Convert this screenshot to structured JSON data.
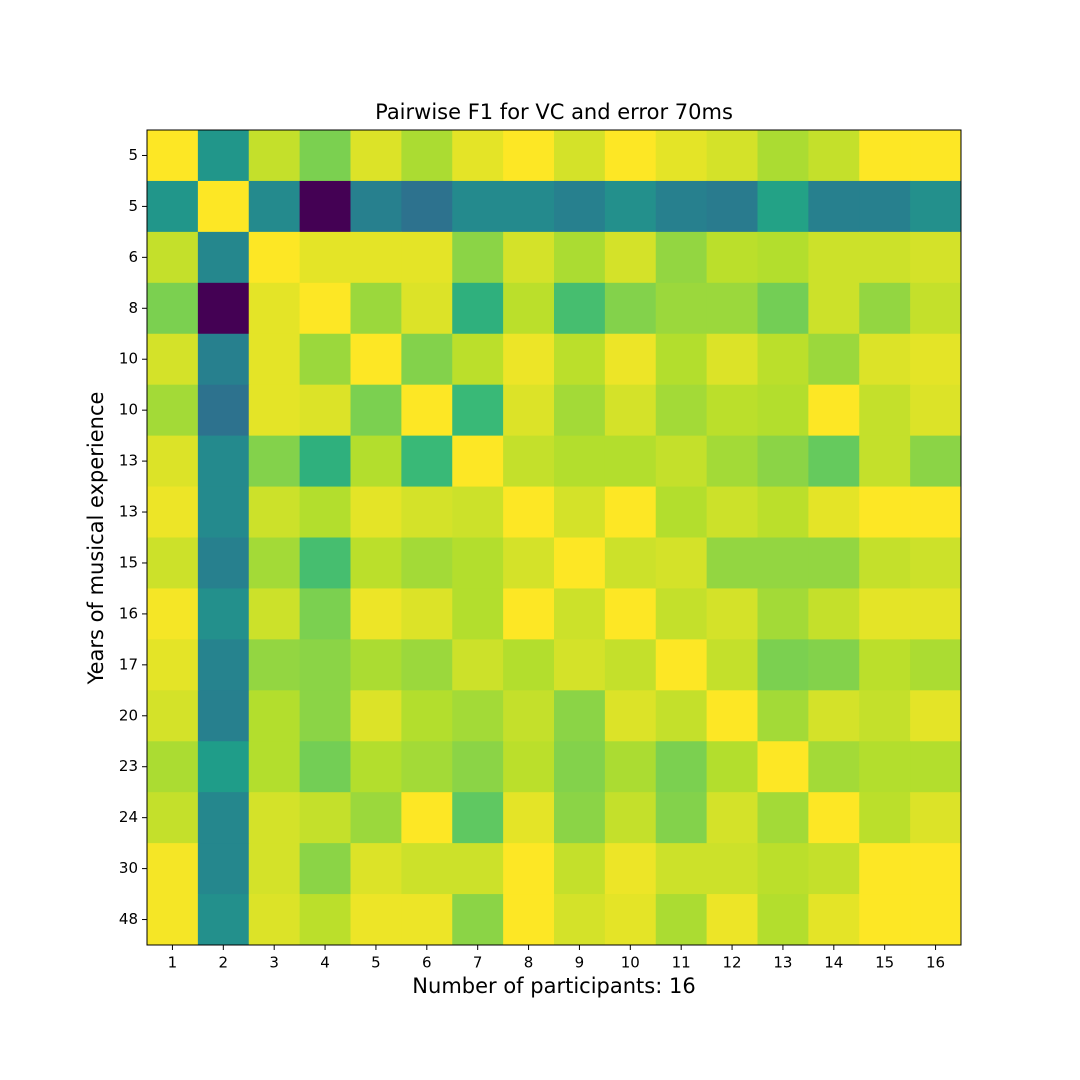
{
  "chart_data": {
    "type": "heatmap",
    "title": "Pairwise F1 for VC and error 70ms",
    "xlabel": "Number of participants: 16",
    "ylabel": "Years of musical experience",
    "colormap": "viridis",
    "x_categories": [
      "1",
      "2",
      "3",
      "4",
      "5",
      "6",
      "7",
      "8",
      "9",
      "10",
      "11",
      "12",
      "13",
      "14",
      "15",
      "16"
    ],
    "y_categories": [
      "5",
      "5",
      "6",
      "8",
      "10",
      "10",
      "13",
      "13",
      "15",
      "16",
      "17",
      "20",
      "23",
      "24",
      "30",
      "48"
    ],
    "values": [
      [
        1.0,
        0.62,
        0.93,
        0.84,
        0.96,
        0.9,
        0.97,
        1.0,
        0.95,
        1.0,
        0.97,
        0.95,
        0.9,
        0.93,
        1.0,
        1.0
      ],
      [
        0.62,
        1.0,
        0.58,
        0.2,
        0.55,
        0.5,
        0.58,
        0.58,
        0.55,
        0.6,
        0.55,
        0.53,
        0.66,
        0.55,
        0.55,
        0.6
      ],
      [
        0.93,
        0.57,
        1.0,
        0.97,
        0.97,
        0.97,
        0.86,
        0.95,
        0.9,
        0.95,
        0.87,
        0.92,
        0.91,
        0.94,
        0.94,
        0.95
      ],
      [
        0.84,
        0.2,
        0.97,
        1.0,
        0.88,
        0.96,
        0.71,
        0.92,
        0.76,
        0.85,
        0.88,
        0.88,
        0.83,
        0.94,
        0.87,
        0.93
      ],
      [
        0.95,
        0.55,
        0.97,
        0.88,
        1.0,
        0.85,
        0.92,
        0.98,
        0.92,
        0.98,
        0.91,
        0.96,
        0.92,
        0.88,
        0.96,
        0.97
      ],
      [
        0.89,
        0.5,
        0.97,
        0.96,
        0.84,
        1.0,
        0.74,
        0.96,
        0.89,
        0.95,
        0.89,
        0.92,
        0.91,
        1.0,
        0.93,
        0.96
      ],
      [
        0.96,
        0.58,
        0.85,
        0.71,
        0.91,
        0.74,
        1.0,
        0.93,
        0.91,
        0.91,
        0.93,
        0.89,
        0.86,
        0.81,
        0.93,
        0.86
      ],
      [
        0.98,
        0.58,
        0.94,
        0.91,
        0.97,
        0.95,
        0.94,
        1.0,
        0.95,
        1.0,
        0.91,
        0.94,
        0.92,
        0.97,
        1.0,
        1.0
      ],
      [
        0.94,
        0.55,
        0.89,
        0.76,
        0.92,
        0.89,
        0.91,
        0.95,
        1.0,
        0.94,
        0.95,
        0.87,
        0.87,
        0.87,
        0.93,
        0.94
      ],
      [
        0.99,
        0.6,
        0.94,
        0.84,
        0.98,
        0.96,
        0.91,
        1.0,
        0.94,
        1.0,
        0.93,
        0.95,
        0.89,
        0.93,
        0.97,
        0.97
      ],
      [
        0.97,
        0.56,
        0.87,
        0.86,
        0.9,
        0.88,
        0.94,
        0.91,
        0.95,
        0.93,
        1.0,
        0.93,
        0.84,
        0.85,
        0.92,
        0.9
      ],
      [
        0.95,
        0.55,
        0.91,
        0.86,
        0.96,
        0.91,
        0.89,
        0.93,
        0.86,
        0.96,
        0.93,
        1.0,
        0.89,
        0.95,
        0.93,
        0.97
      ],
      [
        0.9,
        0.64,
        0.91,
        0.83,
        0.91,
        0.89,
        0.86,
        0.92,
        0.85,
        0.9,
        0.84,
        0.91,
        1.0,
        0.89,
        0.91,
        0.91
      ],
      [
        0.93,
        0.57,
        0.95,
        0.93,
        0.88,
        1.0,
        0.8,
        0.97,
        0.86,
        0.93,
        0.85,
        0.95,
        0.89,
        1.0,
        0.92,
        0.96
      ],
      [
        0.99,
        0.57,
        0.95,
        0.86,
        0.96,
        0.94,
        0.94,
        1.0,
        0.93,
        0.98,
        0.94,
        0.94,
        0.92,
        0.93,
        1.0,
        1.0
      ],
      [
        0.99,
        0.6,
        0.96,
        0.92,
        0.98,
        0.98,
        0.86,
        1.0,
        0.95,
        0.97,
        0.9,
        0.98,
        0.91,
        0.97,
        1.0,
        1.0
      ]
    ]
  }
}
